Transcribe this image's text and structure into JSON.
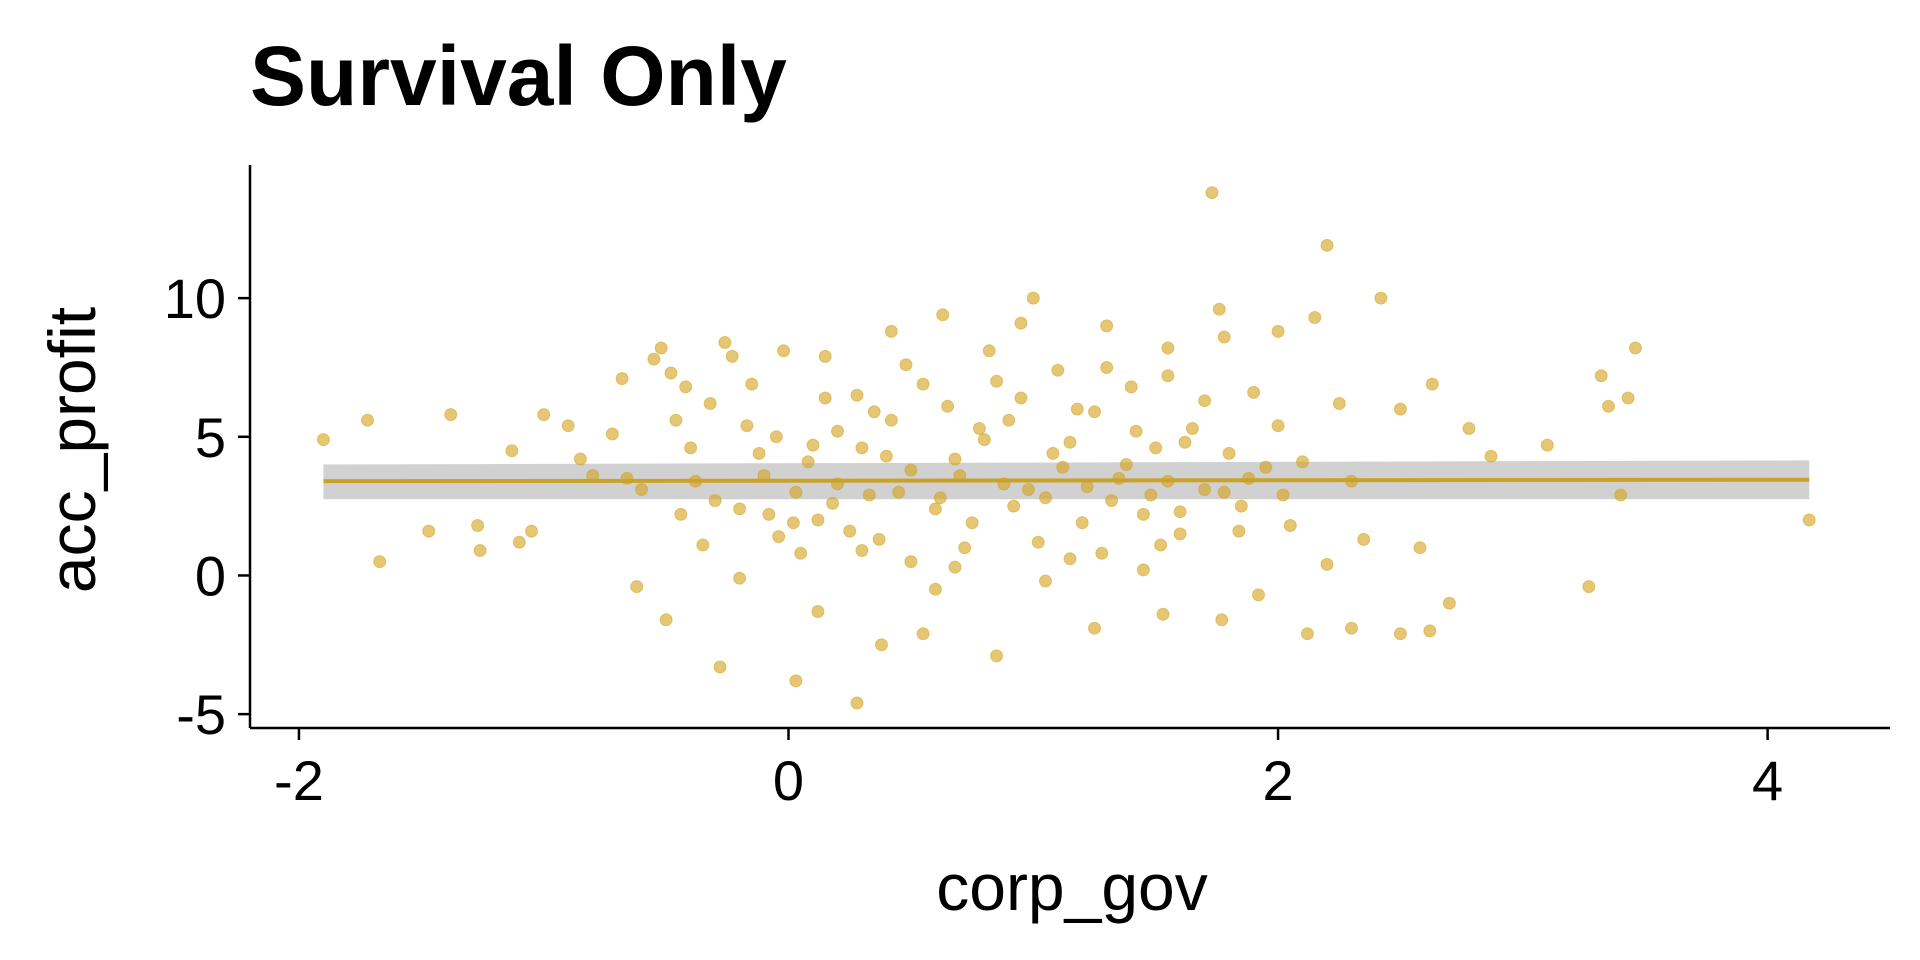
{
  "chart_data": {
    "type": "scatter",
    "title": "Survival Only",
    "xlabel": "corp_gov",
    "ylabel": "acc_profit",
    "xlim": [
      -2.2,
      4.5
    ],
    "ylim": [
      -5.5,
      14.8
    ],
    "xticks": [
      -2,
      0,
      2,
      4
    ],
    "yticks": [
      -5,
      0,
      5,
      10
    ],
    "grid": false,
    "legend": "none",
    "colors": {
      "points": "#d4a017",
      "fit_line": "#c9a227",
      "confidence_band": "#bdbdbd"
    },
    "series": [
      {
        "type": "scatter",
        "points": [
          [
            -1.9,
            4.9
          ],
          [
            -1.72,
            5.6
          ],
          [
            -1.67,
            0.5
          ],
          [
            -1.47,
            1.6
          ],
          [
            -1.38,
            5.8
          ],
          [
            -1.27,
            1.8
          ],
          [
            -1.26,
            0.9
          ],
          [
            -1.13,
            4.5
          ],
          [
            -1.1,
            1.2
          ],
          [
            -1.05,
            1.6
          ],
          [
            -1.0,
            5.8
          ],
          [
            -0.85,
            4.2
          ],
          [
            -0.72,
            5.1
          ],
          [
            -0.68,
            7.1
          ],
          [
            -0.66,
            3.5
          ],
          [
            -0.62,
            -0.4
          ],
          [
            -0.55,
            7.8
          ],
          [
            -0.52,
            8.2
          ],
          [
            -0.48,
            7.3
          ],
          [
            -0.46,
            5.6
          ],
          [
            -0.44,
            2.2
          ],
          [
            -0.42,
            6.8
          ],
          [
            -0.38,
            3.4
          ],
          [
            -0.32,
            6.2
          ],
          [
            -0.26,
            8.4
          ],
          [
            -0.23,
            7.9
          ],
          [
            -0.2,
            2.4
          ],
          [
            -0.17,
            5.4
          ],
          [
            -0.15,
            6.9
          ],
          [
            -0.12,
            4.4
          ],
          [
            -0.08,
            2.2
          ],
          [
            -0.05,
            5.0
          ],
          [
            -0.04,
            1.4
          ],
          [
            -0.02,
            8.1
          ],
          [
            0.03,
            3.0
          ],
          [
            0.05,
            0.8
          ],
          [
            0.08,
            4.1
          ],
          [
            0.12,
            2.0
          ],
          [
            0.15,
            7.9
          ],
          [
            0.2,
            5.2
          ],
          [
            0.28,
            6.5
          ],
          [
            0.3,
            4.6
          ],
          [
            0.33,
            2.9
          ],
          [
            0.37,
            1.3
          ],
          [
            0.42,
            5.6
          ],
          [
            0.5,
            3.8
          ],
          [
            0.55,
            6.9
          ],
          [
            0.6,
            2.4
          ],
          [
            0.63,
            9.4
          ],
          [
            0.68,
            4.2
          ],
          [
            0.72,
            1.0
          ],
          [
            0.78,
            5.3
          ],
          [
            0.82,
            8.1
          ],
          [
            0.88,
            3.3
          ],
          [
            0.95,
            6.4
          ],
          [
            1.0,
            10.0
          ],
          [
            1.05,
            2.8
          ],
          [
            1.1,
            7.4
          ],
          [
            1.15,
            4.8
          ],
          [
            1.2,
            1.9
          ],
          [
            1.25,
            5.9
          ],
          [
            1.3,
            9.0
          ],
          [
            1.35,
            3.5
          ],
          [
            1.4,
            6.8
          ],
          [
            1.45,
            2.2
          ],
          [
            1.5,
            4.6
          ],
          [
            1.55,
            7.2
          ],
          [
            1.6,
            1.5
          ],
          [
            1.65,
            5.3
          ],
          [
            1.7,
            3.1
          ],
          [
            1.73,
            13.8
          ],
          [
            1.76,
            9.6
          ],
          [
            1.8,
            4.4
          ],
          [
            1.85,
            2.5
          ],
          [
            1.9,
            6.6
          ],
          [
            1.95,
            3.9
          ],
          [
            2.0,
            5.4
          ],
          [
            2.05,
            1.8
          ],
          [
            2.1,
            4.1
          ],
          [
            2.15,
            9.3
          ],
          [
            2.2,
            11.9
          ],
          [
            2.25,
            6.2
          ],
          [
            2.3,
            3.4
          ],
          [
            2.35,
            1.3
          ],
          [
            2.42,
            10.0
          ],
          [
            2.5,
            6.0
          ],
          [
            2.58,
            1.0
          ],
          [
            2.63,
            6.9
          ],
          [
            2.7,
            -1.0
          ],
          [
            2.78,
            5.3
          ],
          [
            2.87,
            4.3
          ],
          [
            3.1,
            4.7
          ],
          [
            3.27,
            -0.4
          ],
          [
            3.32,
            7.2
          ],
          [
            3.35,
            6.1
          ],
          [
            3.4,
            2.9
          ],
          [
            3.43,
            6.4
          ],
          [
            3.46,
            8.2
          ],
          [
            4.17,
            2.0
          ],
          [
            -0.5,
            -1.6
          ],
          [
            -0.28,
            -3.3
          ],
          [
            0.03,
            -3.8
          ],
          [
            0.28,
            -4.6
          ],
          [
            0.85,
            -2.9
          ],
          [
            1.25,
            -1.9
          ],
          [
            1.53,
            -1.4
          ],
          [
            1.77,
            -1.6
          ],
          [
            2.12,
            -2.1
          ],
          [
            2.3,
            -1.9
          ],
          [
            2.5,
            -2.1
          ],
          [
            2.62,
            -2.0
          ],
          [
            0.55,
            -2.1
          ],
          [
            0.38,
            -2.5
          ],
          [
            -0.35,
            1.1
          ],
          [
            -0.2,
            -0.1
          ],
          [
            0.12,
            -1.3
          ],
          [
            0.6,
            -0.5
          ],
          [
            1.05,
            -0.2
          ],
          [
            1.45,
            0.2
          ],
          [
            1.92,
            -0.7
          ],
          [
            0.2,
            3.3
          ],
          [
            0.45,
            3.0
          ],
          [
            0.7,
            3.6
          ],
          [
            0.92,
            2.5
          ],
          [
            1.12,
            3.9
          ],
          [
            1.32,
            2.7
          ],
          [
            1.55,
            3.4
          ],
          [
            0.25,
            1.6
          ],
          [
            0.5,
            0.5
          ],
          [
            0.75,
            1.9
          ],
          [
            1.02,
            1.2
          ],
          [
            1.28,
            0.8
          ],
          [
            1.6,
            2.3
          ],
          [
            0.35,
            5.9
          ],
          [
            0.65,
            6.1
          ],
          [
            0.9,
            5.6
          ],
          [
            1.18,
            6.0
          ],
          [
            1.42,
            5.2
          ],
          [
            1.7,
            6.3
          ],
          [
            0.1,
            4.7
          ],
          [
            0.4,
            4.3
          ],
          [
            0.8,
            4.9
          ],
          [
            1.08,
            4.4
          ],
          [
            1.38,
            4.0
          ],
          [
            1.62,
            4.8
          ],
          [
            1.88,
            3.5
          ],
          [
            2.02,
            2.9
          ],
          [
            -0.6,
            3.1
          ],
          [
            -0.3,
            2.7
          ],
          [
            -0.1,
            3.6
          ],
          [
            0.18,
            2.6
          ],
          [
            0.62,
            2.8
          ],
          [
            0.98,
            3.1
          ],
          [
            1.22,
            3.2
          ],
          [
            1.48,
            2.9
          ],
          [
            1.78,
            3.0
          ],
          [
            0.02,
            1.9
          ],
          [
            0.3,
            0.9
          ],
          [
            0.68,
            0.3
          ],
          [
            1.15,
            0.6
          ],
          [
            1.52,
            1.1
          ],
          [
            1.84,
            1.6
          ],
          [
            2.2,
            0.4
          ],
          [
            -0.8,
            3.6
          ],
          [
            -0.9,
            5.4
          ],
          [
            -0.4,
            4.6
          ],
          [
            0.85,
            7.0
          ],
          [
            1.3,
            7.5
          ],
          [
            1.55,
            8.2
          ],
          [
            0.15,
            6.4
          ],
          [
            0.48,
            7.6
          ],
          [
            1.78,
            8.6
          ],
          [
            0.95,
            9.1
          ],
          [
            0.42,
            8.8
          ],
          [
            2.0,
            8.8
          ]
        ]
      }
    ],
    "fit_line": {
      "x": [
        -1.9,
        4.17
      ],
      "y": [
        3.4,
        3.45
      ],
      "ci_lower": [
        2.75,
        2.75
      ],
      "ci_upper": [
        4.0,
        4.15
      ]
    }
  }
}
